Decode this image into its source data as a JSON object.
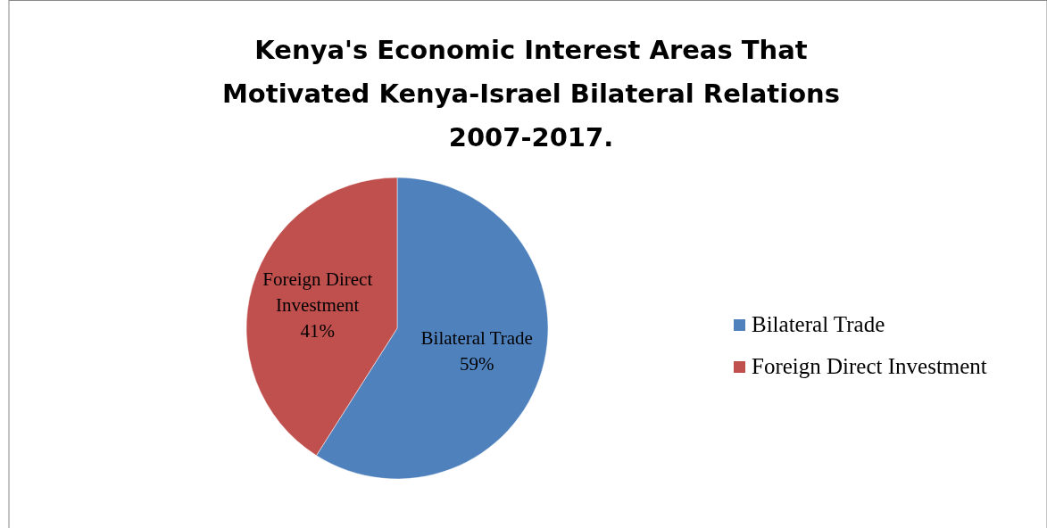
{
  "chart_data": {
    "type": "pie",
    "title": "Kenya's Economic Interest Areas That Motivated Kenya-Israel Bilateral Relations 2007-2017.",
    "categories": [
      "Bilateral Trade",
      "Foreign Direct Investment"
    ],
    "values": [
      59,
      41
    ],
    "colors": [
      "#4f81bd",
      "#c0504d"
    ],
    "value_labels": [
      "59%",
      "41%"
    ],
    "legend": "right"
  }
}
